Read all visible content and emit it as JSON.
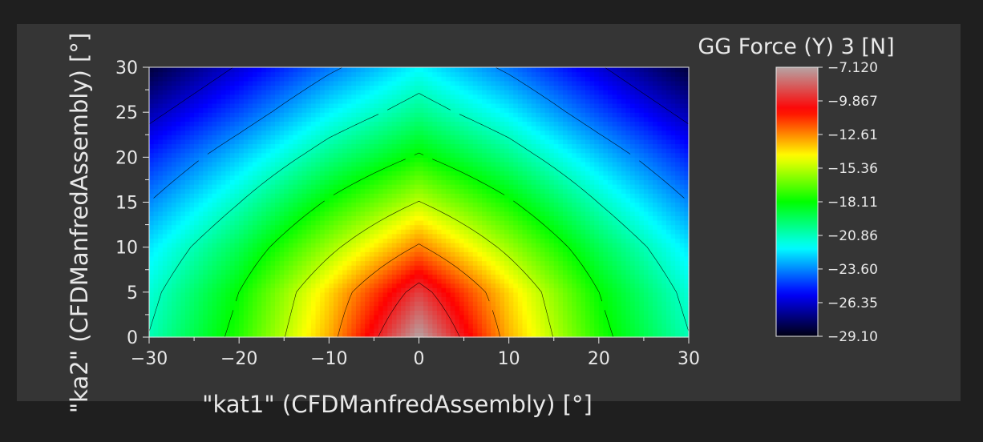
{
  "chart_data": {
    "type": "contour",
    "title": "GG Force (Y) 3 [N]",
    "xlabel": "\"kat1\" (CFDManfredAssembly) [°]",
    "ylabel": "\"ka2\" (CFDManfredAssembly) [°]",
    "xlim": [
      -30,
      30
    ],
    "ylim": [
      0,
      30
    ],
    "x_ticks": [
      "−30",
      "−20",
      "−10",
      "0",
      "10",
      "20",
      "30"
    ],
    "y_ticks": [
      "0",
      "5",
      "10",
      "15",
      "20",
      "25",
      "30"
    ],
    "x_grid": [
      -30,
      -20,
      -10,
      0,
      10,
      20,
      30
    ],
    "y_grid": [
      0,
      5,
      10,
      15,
      20,
      25,
      30
    ],
    "z_grid": [
      [
        -20.8,
        -17.6,
        -13.2,
        -7.1,
        -13.2,
        -17.6,
        -20.8
      ],
      [
        -21.3,
        -18.1,
        -13.8,
        -9.2,
        -13.8,
        -18.1,
        -21.3
      ],
      [
        -22.2,
        -19.3,
        -15.8,
        -12.4,
        -15.8,
        -19.3,
        -22.2
      ],
      [
        -23.6,
        -20.9,
        -17.9,
        -15.3,
        -17.9,
        -20.9,
        -23.6
      ],
      [
        -25.1,
        -22.6,
        -20.0,
        -17.9,
        -20.0,
        -22.6,
        -25.1
      ],
      [
        -26.8,
        -24.5,
        -22.0,
        -20.1,
        -22.0,
        -24.5,
        -26.8
      ],
      [
        -28.5,
        -26.2,
        -23.9,
        -21.9,
        -23.9,
        -26.2,
        -28.5
      ]
    ],
    "contour_levels": [
      -26.35,
      -23.6,
      -20.86,
      -18.11,
      -15.36,
      -12.61,
      -9.867
    ],
    "colorbar": {
      "min": -29.1,
      "max": -7.12,
      "tick_values": [
        -7.12,
        -9.867,
        -12.61,
        -15.36,
        -18.11,
        -20.86,
        -23.6,
        -26.35,
        -29.1
      ],
      "tick_labels": [
        "−7.120",
        "−9.867",
        "−12.61",
        "−15.36",
        "−18.11",
        "−20.86",
        "−23.60",
        "−26.35",
        "−29.10"
      ],
      "stops": [
        "#000000",
        "#0000ff",
        "#00ffff",
        "#00ff00",
        "#ffff00",
        "#ff0000",
        "#b0b0b0"
      ]
    },
    "colormap": "rainbow",
    "grid": false,
    "legend": "colorbar-right",
    "background": "#353535",
    "text_color": "#e8e8e8"
  }
}
